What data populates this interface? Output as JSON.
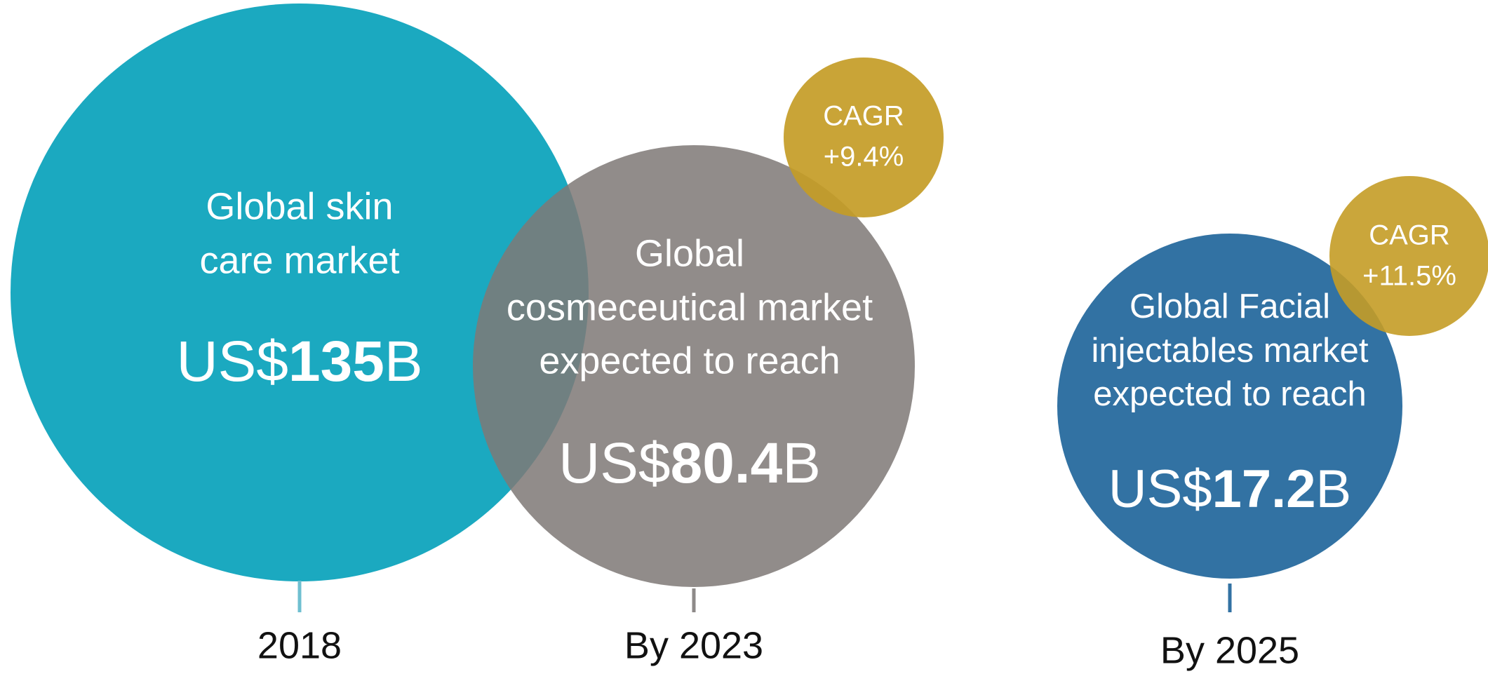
{
  "bubbles": [
    {
      "label": [
        "Global skin",
        "care market"
      ],
      "prefix": "US$",
      "amount": "135",
      "unit": "B",
      "year": "2018"
    },
    {
      "label": [
        "Global",
        "cosmeceutical market",
        "expected to reach"
      ],
      "prefix": "US$",
      "amount": "80.4",
      "unit": "B",
      "year": "By 2023",
      "cagr": [
        "CAGR",
        "+9.4%"
      ]
    },
    {
      "label": [
        "Global Facial",
        "injectables market",
        "expected to reach"
      ],
      "prefix": "US$",
      "amount": "17.2",
      "unit": "B",
      "year": "By 2025",
      "cagr": [
        "CAGR",
        "+11.5%"
      ]
    }
  ]
}
